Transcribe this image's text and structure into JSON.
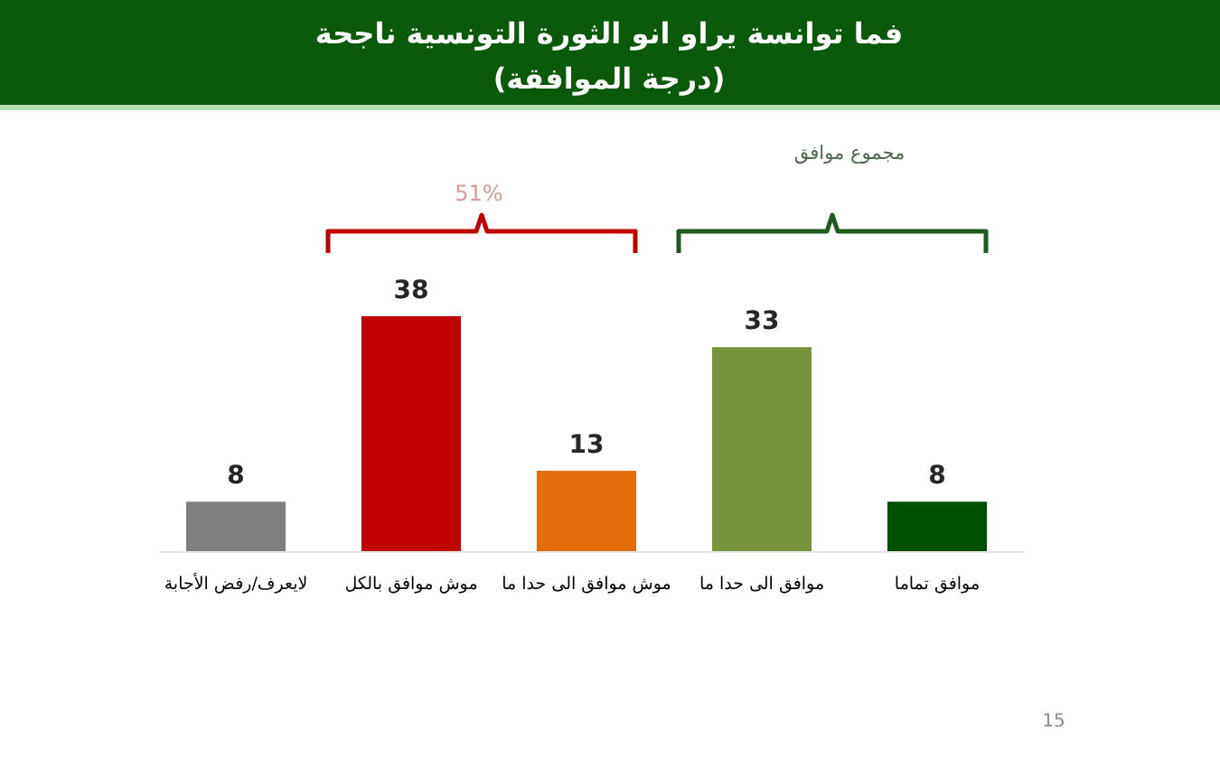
{
  "chart_data": {
    "type": "bar",
    "title": "فما توانسة يراو انو الثورة التونسية ناجحة",
    "subtitle": "(درجة الموافقة)",
    "categories": [
      "لايعرف/رفض الأجابة",
      "موش موافق بالكل",
      "موش موافق الى حدا ما",
      "موافق الى حدا ما",
      "موافق تماما"
    ],
    "values": [
      8,
      38,
      13,
      33,
      8
    ],
    "colors": [
      "#7f7f7f",
      "#c00000",
      "#e46c0a",
      "#77933c",
      "#005000"
    ],
    "data_labels": true,
    "annotations": [
      "51%",
      "مجموع موافق",
      "15"
    ]
  }
}
